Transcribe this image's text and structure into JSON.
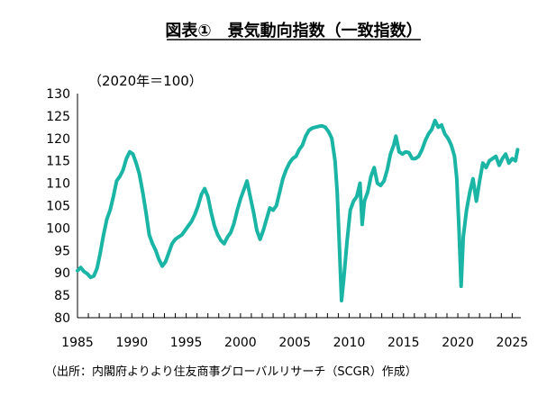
{
  "title": "図表①　景気動向指数（一致指数）",
  "unit_note": "（2020年＝100）",
  "source": "（出所：内閣府よりより住友商事グローバルリサーチ（SCGR）作成）",
  "chart_data": {
    "type": "line",
    "title": "図表①　景気動向指数（一致指数）",
    "ylabel_note": "（2020年＝100）",
    "xlabel": "",
    "ylim": [
      80,
      130
    ],
    "yticks": [
      "80",
      "85",
      "90",
      "95",
      "100",
      "105",
      "110",
      "115",
      "120",
      "125",
      "130"
    ],
    "xlim": [
      1985,
      2025.8
    ],
    "xticks": [
      "1985",
      "1990",
      "1995",
      "2000",
      "2005",
      "2010",
      "2015",
      "2020",
      "2025"
    ],
    "grid": false,
    "line_color": "#1bb5a5",
    "series": [
      {
        "x": [
          1985.0,
          1985.3,
          1985.6,
          1985.9,
          1986.2,
          1986.5,
          1986.8,
          1987.1,
          1987.4,
          1987.7,
          1988.0,
          1988.3,
          1988.6,
          1988.9,
          1989.2,
          1989.5,
          1989.8,
          1990.1,
          1990.4,
          1990.7,
          1991.0,
          1991.3,
          1991.6,
          1991.9,
          1992.2,
          1992.5,
          1992.8,
          1993.1,
          1993.4,
          1993.7,
          1994.0,
          1994.3,
          1994.6,
          1994.9,
          1995.2,
          1995.5,
          1995.8,
          1996.1,
          1996.4,
          1996.7,
          1997.0,
          1997.3,
          1997.6,
          1997.9,
          1998.2,
          1998.5,
          1998.8,
          1999.1,
          1999.4,
          1999.7,
          2000.0,
          2000.3,
          2000.6,
          2000.9,
          2001.2,
          2001.5,
          2001.8,
          2002.1,
          2002.4,
          2002.7,
          2003.0,
          2003.3,
          2003.6,
          2003.9,
          2004.2,
          2004.5,
          2004.8,
          2005.1,
          2005.4,
          2005.7,
          2006.0,
          2006.3,
          2006.6,
          2006.9,
          2007.2,
          2007.5,
          2007.8,
          2008.1,
          2008.4,
          2008.7,
          2008.9,
          2009.1,
          2009.3,
          2009.5,
          2009.8,
          2010.1,
          2010.4,
          2010.7,
          2011.0,
          2011.2,
          2011.4,
          2011.7,
          2012.0,
          2012.3,
          2012.6,
          2012.9,
          2013.2,
          2013.5,
          2013.8,
          2014.1,
          2014.3,
          2014.6,
          2014.9,
          2015.2,
          2015.5,
          2015.8,
          2016.1,
          2016.4,
          2016.7,
          2017.0,
          2017.3,
          2017.6,
          2017.9,
          2018.2,
          2018.5,
          2018.8,
          2019.1,
          2019.4,
          2019.7,
          2019.9,
          2020.1,
          2020.3,
          2020.5,
          2020.8,
          2021.1,
          2021.4,
          2021.7,
          2022.0,
          2022.3,
          2022.6,
          2022.9,
          2023.2,
          2023.5,
          2023.8,
          2024.1,
          2024.4,
          2024.7,
          2025.0,
          2025.3,
          2025.5
        ],
        "y": [
          90.5,
          91.2,
          90.3,
          89.8,
          89.0,
          89.3,
          91.0,
          94.5,
          98.5,
          102.0,
          104.0,
          107.0,
          110.5,
          111.5,
          113.0,
          115.5,
          117.0,
          116.5,
          114.5,
          112.0,
          108.0,
          103.5,
          98.5,
          96.5,
          95.0,
          93.0,
          91.5,
          92.5,
          94.5,
          96.5,
          97.5,
          98.0,
          98.5,
          99.5,
          100.5,
          101.5,
          103.0,
          105.0,
          107.5,
          108.8,
          107.0,
          103.5,
          100.5,
          98.5,
          97.2,
          96.5,
          98.0,
          99.0,
          101.0,
          104.0,
          106.5,
          108.5,
          110.5,
          107.0,
          103.5,
          99.5,
          97.5,
          99.5,
          102.0,
          104.5,
          104.0,
          105.0,
          108.0,
          111.0,
          113.0,
          114.5,
          115.5,
          116.0,
          117.5,
          118.5,
          120.5,
          121.8,
          122.3,
          122.5,
          122.7,
          122.8,
          122.5,
          121.5,
          120.0,
          115.0,
          108.0,
          96.0,
          83.8,
          88.5,
          97.0,
          104.0,
          106.0,
          107.0,
          110.0,
          100.8,
          106.0,
          108.0,
          111.5,
          113.5,
          110.0,
          109.5,
          110.5,
          113.0,
          116.5,
          118.5,
          120.5,
          117.0,
          116.5,
          117.0,
          116.8,
          115.5,
          115.5,
          116.0,
          117.5,
          119.5,
          121.0,
          122.0,
          124.0,
          122.5,
          123.0,
          121.0,
          120.0,
          118.5,
          116.0,
          111.0,
          100.0,
          87.0,
          98.0,
          104.0,
          108.0,
          111.0,
          106.0,
          110.5,
          114.5,
          113.5,
          115.0,
          115.5,
          116.0,
          114.0,
          115.5,
          116.5,
          114.5,
          115.5,
          115.0,
          117.5
        ]
      }
    ]
  }
}
